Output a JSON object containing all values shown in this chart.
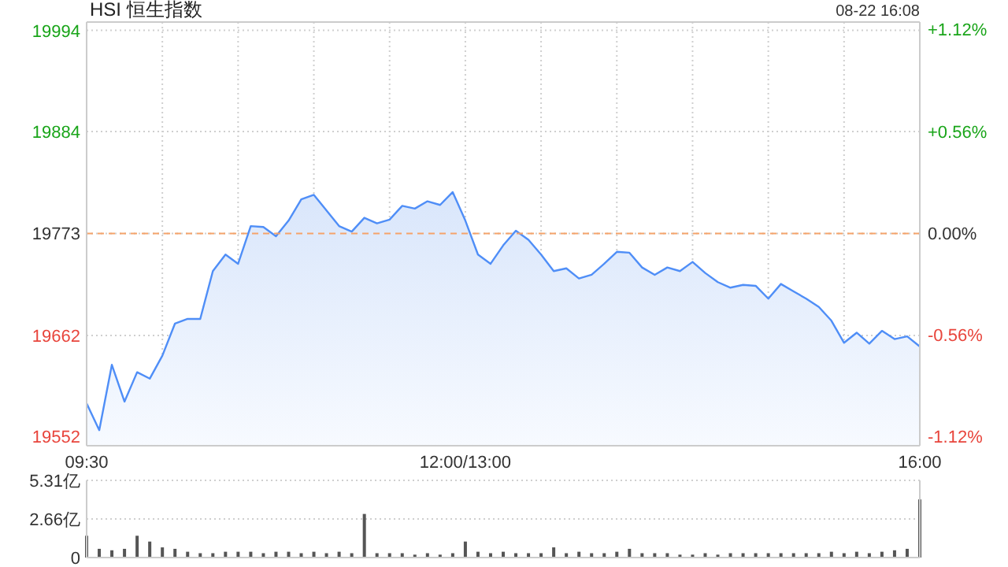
{
  "chart_data": [
    {
      "type": "area",
      "title": "HSI 恒生指数",
      "annotations": [
        "08-22 16:08"
      ],
      "categories": [
        "09:30",
        null,
        null,
        null,
        null,
        null,
        null,
        null,
        null,
        null,
        null,
        null,
        null,
        null,
        null,
        null,
        null,
        null,
        null,
        null,
        null,
        null,
        null,
        null,
        null,
        null,
        null,
        null,
        null,
        null,
        "12:00/13:00",
        null,
        null,
        null,
        null,
        null,
        null,
        null,
        null,
        null,
        null,
        null,
        null,
        null,
        null,
        null,
        null,
        null,
        null,
        null,
        null,
        null,
        null,
        null,
        null,
        null,
        null,
        null,
        null,
        null,
        null,
        null,
        null,
        null,
        null,
        null,
        "16:00"
      ],
      "series": [
        {
          "color": "#4f8ef7",
          "values": [
            19588,
            19559,
            19630,
            19590,
            19622,
            19615,
            19640,
            19675,
            19680,
            19680,
            19732,
            19750,
            19740,
            19781,
            19780,
            19770,
            19787,
            19810,
            19815,
            19798,
            19781,
            19775,
            19790,
            19784,
            19788,
            19803,
            19800,
            19808,
            19804,
            19818,
            19787,
            19750,
            19740,
            19760,
            19776,
            19766,
            19750,
            19732,
            19735,
            19724,
            19728,
            19740,
            19753,
            19752,
            19736,
            19728,
            19736,
            19732,
            19742,
            19730,
            19720,
            19714,
            19717,
            19716,
            19702,
            19718,
            19710,
            19702,
            19693,
            19678,
            19654,
            19665,
            19653,
            19667,
            19658,
            19661,
            19650
          ]
        }
      ],
      "ylim": [
        19542,
        20003
      ],
      "yticks": [
        19552,
        19662,
        19773,
        19884,
        19994
      ],
      "y2lim": [
        -1.17,
        1.16
      ],
      "y2ticks": [
        {
          "value": 1.12,
          "label": "+1.12%"
        },
        {
          "value": 0.56,
          "label": "+0.56%"
        },
        {
          "value": 0,
          "label": "0.00%"
        },
        {
          "value": -0.56,
          "label": "-0.56%"
        },
        {
          "value": -1.12,
          "label": "-1.12%"
        }
      ],
      "ref_lines": [
        {
          "axis": "y",
          "value": 19773,
          "color": "#f5a36a",
          "line_style": "dashed"
        }
      ],
      "grid": true
    },
    {
      "type": "bar",
      "color": "#555555",
      "categories": [
        null,
        null,
        null,
        null,
        null,
        null,
        null,
        null,
        null,
        null,
        null,
        null,
        null,
        null,
        null,
        null,
        null,
        null,
        null,
        null,
        null,
        null,
        null,
        null,
        null,
        null,
        null,
        null,
        null,
        null,
        null,
        null,
        null,
        null,
        null,
        null,
        null,
        null,
        null,
        null,
        null,
        null,
        null,
        null,
        null,
        null,
        null,
        null,
        null,
        null,
        null,
        null,
        null,
        null,
        null,
        null,
        null,
        null,
        null,
        null,
        null,
        null,
        null,
        null,
        null,
        null,
        null
      ],
      "values": [
        1.5,
        0.6,
        0.5,
        0.6,
        1.5,
        1.1,
        0.7,
        0.6,
        0.4,
        0.3,
        0.3,
        0.4,
        0.4,
        0.4,
        0.3,
        0.4,
        0.4,
        0.3,
        0.4,
        0.3,
        0.4,
        0.3,
        3.0,
        0.3,
        0.3,
        0.3,
        0.2,
        0.3,
        0.2,
        0.3,
        1.1,
        0.4,
        0.3,
        0.4,
        0.3,
        0.3,
        0.3,
        0.7,
        0.3,
        0.4,
        0.3,
        0.3,
        0.4,
        0.6,
        0.3,
        0.3,
        0.3,
        0.2,
        0.2,
        0.3,
        0.2,
        0.3,
        0.3,
        0.3,
        0.3,
        0.3,
        0.3,
        0.3,
        0.3,
        0.4,
        0.3,
        0.4,
        0.3,
        0.4,
        0.5,
        0.6,
        4.0
      ],
      "ylim": [
        0,
        5.31
      ],
      "yticks": [
        0,
        {
          "value": 2.66,
          "label": "2.66亿"
        },
        {
          "value": 5.31,
          "label": "5.31亿"
        }
      ],
      "grid": "y",
      "tick_labels": "y"
    }
  ]
}
